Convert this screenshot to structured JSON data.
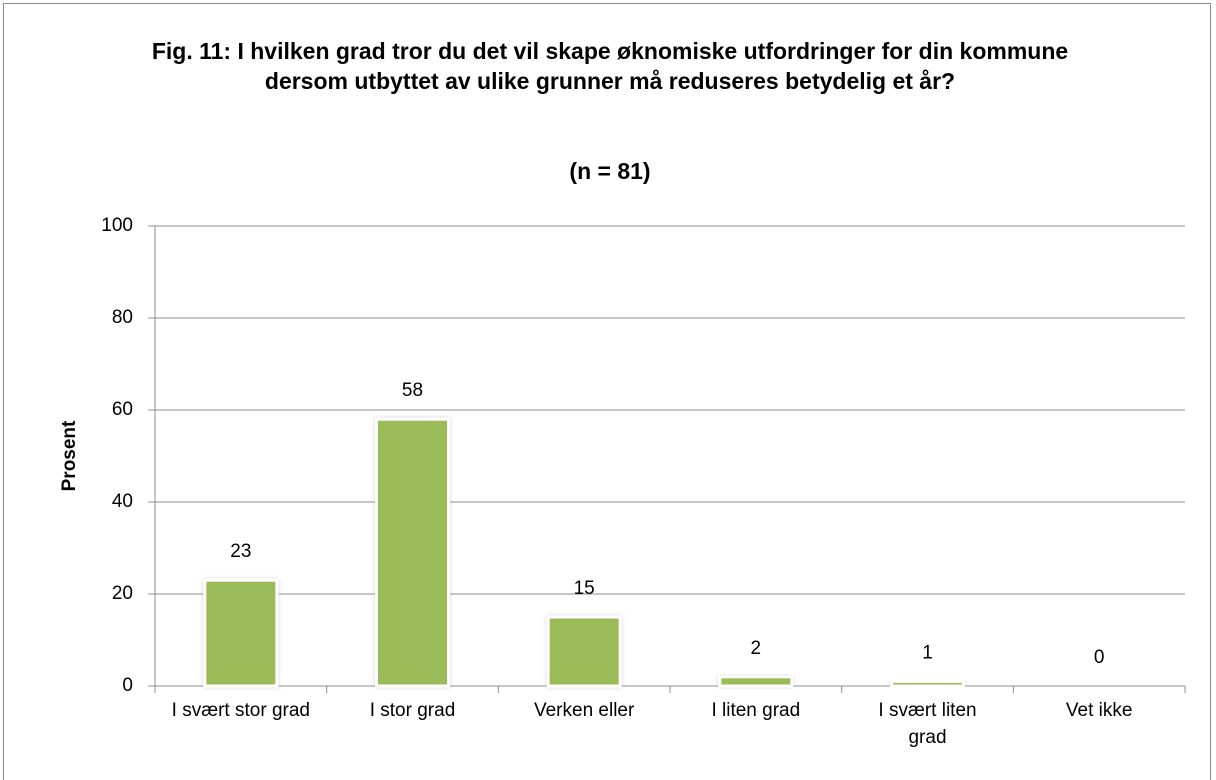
{
  "chart_data": {
    "type": "bar",
    "title": "Fig. 11: I hvilken grad tror du det vil skape øknomiske utfordringer for din kommune dersom utbyttet av ulike grunner må reduseres betydelig et år?",
    "subtitle": "(n = 81)",
    "y_label": "Prosent",
    "categories": [
      "I svært stor grad",
      "I stor grad",
      "Verken eller",
      "I liten grad",
      "I svært liten grad",
      "Vet ikke"
    ],
    "values": [
      23,
      58,
      15,
      2,
      1,
      0
    ],
    "color": "#9bbb59",
    "ylim": [
      0,
      100
    ],
    "yticks": [
      0,
      20,
      40,
      60,
      80,
      100
    ],
    "grid": true
  }
}
